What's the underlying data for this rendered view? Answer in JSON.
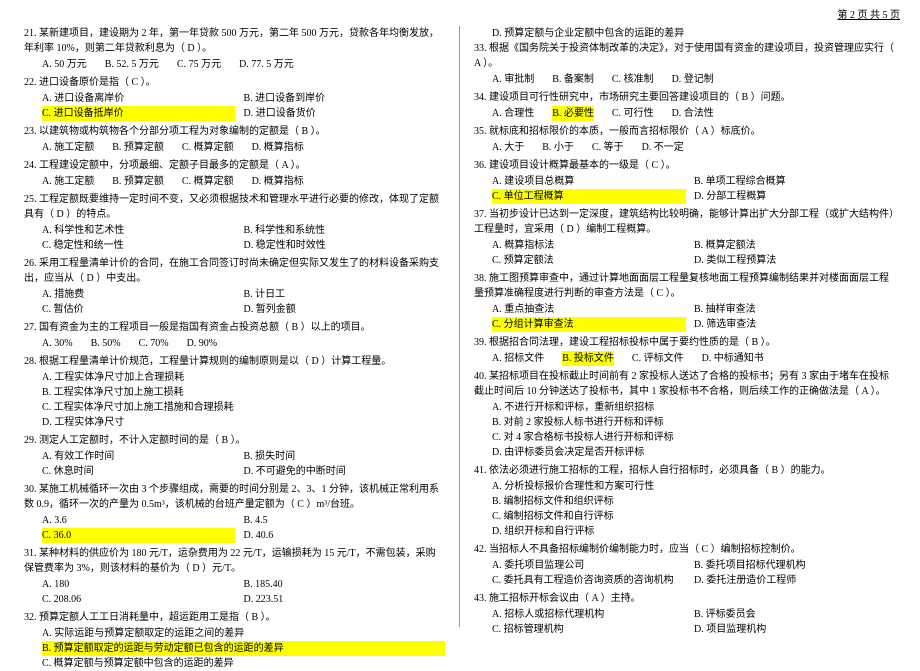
{
  "header": {
    "page_label": "第 2 页  共 5 页"
  },
  "left": {
    "q21": {
      "stem": "21.  某新建项目，建设期为 2 年，第一年贷款 500 万元，第二年 500 万元，贷款各年均衡发放，年利率 10%，则第二年贷款利息为（    D   ）。",
      "a": "A.  50 万元",
      "b": "B.  52. 5 万元",
      "c": "C.  75 万元",
      "d": "D.  77. 5 万元"
    },
    "q22": {
      "stem": "22.  进口设备原价是指（    C    ）。",
      "a": "A.  进口设备离岸价",
      "b": "B.  进口设备到岸价",
      "c": "C.  进口设备抵岸价",
      "d": "D.  进口设备货价"
    },
    "q23": {
      "stem": "23.  以建筑物或构筑物各个分部分项工程为对象编制的定额是（    B   ）。",
      "a": "A.  施工定额",
      "b": "B.  预算定额",
      "c": "C.  概算定额",
      "d": "D.  概算指标"
    },
    "q24": {
      "stem": "24.  工程建设定额中，分项最细、定额子目最多的定额是（    A    ）。",
      "a": "A.  施工定额",
      "b": "B.  预算定额",
      "c": "C.  概算定额",
      "d": "D.  概算指标"
    },
    "q25": {
      "stem": "25.  工程定额既要维持一定时间不变，又必须根据技术和管理水平进行必要的修改，体现了定额具有（    D   ）的特点。",
      "a": "A.  科学性和艺术性",
      "b": "B.  科学性和系统性",
      "c": "C.  稳定性和统一性",
      "d": "D.  稳定性和时效性"
    },
    "q26": {
      "stem": "26.  采用工程量清单计价的合同，在施工合同签订时尚未确定但实际又发生了的材料设备采购支出，应当从（    D   ）中支出。",
      "a": "A.  措施费",
      "b": "B.  计日工",
      "c": "C.  暂估价",
      "d": "D.  暂列金额"
    },
    "q27": {
      "stem": "27.  国有资金为主的工程项目一般是指国有资金占投资总额（    B   ）以上的项目。",
      "a": "A.  30%",
      "b": "B.  50%",
      "c": "C.  70%",
      "d": "D.  90%"
    },
    "q28": {
      "stem": "28.  根据工程量清单计价规范，工程量计算规则的编制原则是以（    D   ）计算工程量。",
      "a": "A.  工程实体净尺寸加上合理损耗",
      "b": "B.  工程实体净尺寸加上施工损耗",
      "c": "C.  工程实体净尺寸加上施工措施和合理损耗",
      "d": "D.  工程实体净尺寸"
    },
    "q29": {
      "stem": "29.  测定人工定额时，不计入定额时间的是（    B   ）。",
      "a": "A.  有效工作时间",
      "b": "B.  损失时间",
      "c": "C.  休息时间",
      "d": "D.  不可避免的中断时间"
    },
    "q30": {
      "stem": "30.  某施工机械循环一次由 3 个步骤组成，需要的时间分别是 2、3、1 分钟，该机械正常利用系数 0.9，循环一次的产量为 0.5m³，该机械的台班产量定额为（    C   ）m³/台班。",
      "a": "A.  3.6",
      "b": "B.  4.5",
      "c": "C.  36.0",
      "d": "D.  40.6"
    },
    "q31": {
      "stem": "31.  某种材料的供应价为 180 元/T，运杂费用为 22 元/T，运输损耗为 15 元/T，不需包装，采购保管费率为 3%，则该材料的基价为（    D   ）元/T。",
      "a": "A.  180",
      "b": "B.  185.40",
      "c": "C.  208.06",
      "d": "D.  223.51"
    },
    "q32": {
      "stem": "32.  预算定额人工工日消耗量中，超运距用工是指（    B   ）。",
      "a": "A.  实际运距与预算定额取定的运距之间的差异",
      "b": "B.  预算定额取定的运距与劳动定额已包含的运距的差异",
      "c": "C.  概算定额与预算定额中包含的运距的差异"
    }
  },
  "right": {
    "q32d": "D.  预算定额与企业定额中包含的运距的差异",
    "q33": {
      "stem": "33.  根据《国务院关于投资体制改革的决定》，对于使用国有资金的建设项目，投资管理应实行（    A   ）。",
      "a": "A.  审批制",
      "b": "B.  备案制",
      "c": "C.  核准制",
      "d": "D.  登记制"
    },
    "q34": {
      "stem": "34.  建设项目可行性研究中，市场研究主要回答建设项目的（    B   ）问题。",
      "a": "A.  合理性",
      "b": "B.  必要性",
      "c": "C.  可行性",
      "d": "D.  合法性"
    },
    "q35": {
      "stem": "35.  就标底和招标限价的本质，一般而言招标限价（    A   ）标底价。",
      "a": "A.  大于",
      "b": "B.  小于",
      "c": "C.  等于",
      "d": "D.  不一定"
    },
    "q36": {
      "stem": "36.  建设项目设计概算最基本的一级是（    C   ）。",
      "a": "A.  建设项目总概算",
      "b": "B.  单项工程综合概算",
      "c": "C.  单位工程概算",
      "d": "D.  分部工程概算"
    },
    "q37": {
      "stem": "37.  当初步设计已达到一定深度，建筑结构比较明确，能够计算出扩大分部工程（或扩大结构件）工程量时，宜采用（    D   ）编制工程概算。",
      "a": "A.  概算指标法",
      "b": "B.  概算定额法",
      "c": "C.  预算定额法",
      "d": "D.  类似工程预算法"
    },
    "q38": {
      "stem": "38.  施工图预算审查中，通过计算地面面层工程量复核地面工程预算编制结果并对楼面面层工程量预算准确程度进行判断的审查方法是（    C   ）。",
      "a": "A.  重点抽查法",
      "b": "B.  抽样审查法",
      "c": "C.  分组计算审查法",
      "d": "D.  筛选审查法"
    },
    "q39": {
      "stem": "39.  根据招合同法理，建设工程招标投标中属于要约性质的是（    B   ）。",
      "a": "A.  招标文件",
      "b": "B.  投标文件",
      "c": "C.  评标文件",
      "d": "D.  中标通知书"
    },
    "q40": {
      "stem": "40.  某招标项目在投标截止时间前有 2 家投标人送达了合格的投标书；另有 3 家由于堵车在投标截止时间后 10 分钟送达了投标书，其中 1 家投标书不合格，则后续工作的正确做法是（    A   ）。",
      "a": "A.  不进行开标和评标，重新组织招标",
      "b": "B.  对前 2 家投标人标书进行开标和评标",
      "c": "C.  对 4 家合格标书投标人进行开标和评标",
      "d": "D.  由评标委员会决定是否开标评标"
    },
    "q41": {
      "stem": "41.  依法必须进行施工招标的工程，招标人自行招标时，必须具备（    B   ）的能力。",
      "a": "A.  分析投标报价合理性和方案可行性",
      "b": "B.  编制招标文件和组织评标",
      "c": "C.  编制招标文件和自行评标",
      "d": "D.  组织开标和自行评标"
    },
    "q42": {
      "stem": "42.  当招标人不具备招标编制价编制能力时，应当（    C   ）编制招标控制价。",
      "a": "A.  委托项目监理公司",
      "b": "B.  委托项目招标代理机构",
      "c": "C.  委托具有工程造价咨询资质的咨询机构",
      "d": "D.  委托注册造价工程师"
    },
    "q43": {
      "stem": "43.  施工招标开标会议由（    A   ）主持。",
      "a": "A.  招标人或招标代理机构",
      "b": "B.  评标委员会",
      "c": "C.  招标管理机构",
      "d": "D.  项目监理机构"
    }
  }
}
